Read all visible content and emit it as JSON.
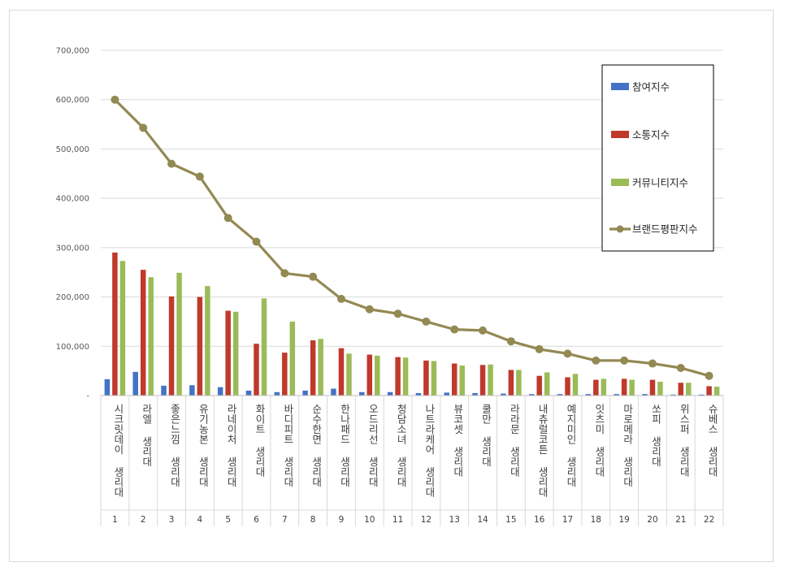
{
  "chart_data": {
    "type": "bar",
    "ylim": [
      0,
      700000
    ],
    "yticks": [
      "-",
      "100,000",
      "200,000",
      "300,000",
      "400,000",
      "500,000",
      "600,000",
      "700,000"
    ],
    "grid": true,
    "legend_position": "top-right",
    "ranks": [
      "1",
      "2",
      "3",
      "4",
      "5",
      "6",
      "7",
      "8",
      "9",
      "10",
      "11",
      "12",
      "13",
      "14",
      "15",
      "16",
      "17",
      "18",
      "19",
      "20",
      "21",
      "22"
    ],
    "categories": [
      "시크릿데이 생리대",
      "라엘 생리대",
      "좋은느낌 생리대",
      "유기농본 생리대",
      "라네이처 생리대",
      "화이트 생리대",
      "바디피트 생리대",
      "순수한면 생리대",
      "한나패드 생리대",
      "오드리선 생리대",
      "청담소녀 생리대",
      "나트라케어 생리대",
      "뷰코셋 생리대",
      "쿨만 생리대",
      "라라문 생리대",
      "내츄럴코튼 생리대",
      "예지미인 생리대",
      "잇츠미 생리대",
      "마로메라 생리대",
      "쏘피 생리대",
      "위스퍼 생리대",
      "슈베스 생리대"
    ],
    "series": [
      {
        "name": "참여지수",
        "color": "#4472c4",
        "kind": "bar",
        "values": [
          33000,
          48000,
          20000,
          21000,
          17000,
          10000,
          7000,
          10000,
          14000,
          7000,
          7000,
          5000,
          6000,
          5000,
          4000,
          3000,
          3000,
          3000,
          3000,
          3000,
          2000,
          2000
        ]
      },
      {
        "name": "소통지수",
        "color": "#c0392b",
        "kind": "bar",
        "values": [
          290000,
          255000,
          201000,
          200000,
          172000,
          105000,
          87000,
          112000,
          96000,
          83000,
          78000,
          71000,
          65000,
          62000,
          52000,
          40000,
          37000,
          32000,
          34000,
          32000,
          26000,
          19000
        ]
      },
      {
        "name": "커뮤니티지수",
        "color": "#9bbb59",
        "kind": "bar",
        "values": [
          273000,
          240000,
          249000,
          222000,
          170000,
          197000,
          150000,
          115000,
          85000,
          81000,
          77000,
          70000,
          61000,
          63000,
          52000,
          47000,
          44000,
          34000,
          32000,
          28000,
          26000,
          18000
        ]
      },
      {
        "name": "브랜드평판지수",
        "color": "#938953",
        "kind": "line",
        "values": [
          600000,
          543000,
          470000,
          444000,
          360000,
          312000,
          248000,
          241000,
          196000,
          175000,
          166000,
          150000,
          134000,
          132000,
          110000,
          94000,
          85000,
          71000,
          71000,
          65000,
          56000,
          40000
        ]
      }
    ]
  }
}
